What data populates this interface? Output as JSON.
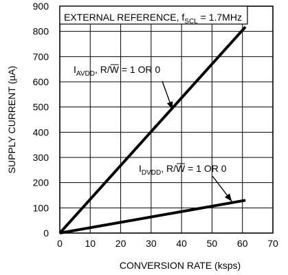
{
  "chart_data": {
    "type": "line",
    "title": "",
    "xlabel": "CONVERSION RATE (ksps)",
    "ylabel": "SUPPLY CURRENT (µA)",
    "xlim": [
      0,
      70
    ],
    "ylim": [
      0,
      900
    ],
    "xticks": [
      "0",
      "10",
      "20",
      "30",
      "40",
      "50",
      "60",
      "70"
    ],
    "yticks": [
      "0",
      "100",
      "200",
      "300",
      "400",
      "500",
      "600",
      "700",
      "800",
      "900"
    ],
    "grid": true,
    "series": [
      {
        "name": "AVDD",
        "x": [
          0,
          61
        ],
        "y": [
          0,
          818
        ]
      },
      {
        "name": "DVDD",
        "x": [
          0,
          61
        ],
        "y": [
          0,
          130
        ]
      }
    ],
    "annotations": {
      "condition": {
        "prefix": "EXTERNAL REFERENCE, f",
        "sub": "SCL",
        "suffix": " = 1.7MHz"
      },
      "avdd": {
        "prefix": "I",
        "sub": "AVDD",
        "mid": ", R/",
        "over": "W",
        "suffix": " = 1 OR 0"
      },
      "dvdd": {
        "prefix": "I",
        "sub": "DVDD",
        "mid": ", R/",
        "over": "W",
        "suffix": " = 1 OR 0"
      }
    }
  }
}
